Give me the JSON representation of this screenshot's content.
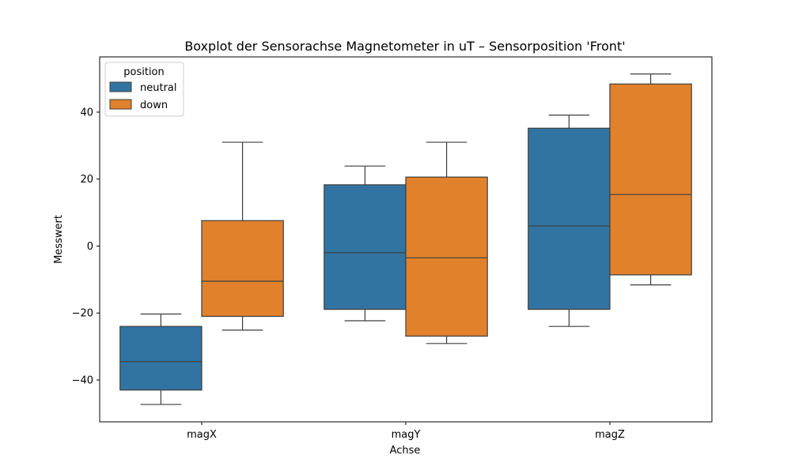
{
  "chart_data": {
    "type": "boxplot",
    "title": "Boxplot der Sensorachse Magnetometer in uT – Sensorposition 'Front'",
    "xlabel": "Achse",
    "ylabel": "Messwert",
    "ylim": [
      -52.5,
      56.5
    ],
    "yticks": [
      -40,
      -20,
      0,
      20,
      40
    ],
    "ytick_labels": [
      "−40",
      "−20",
      "0",
      "20",
      "40"
    ],
    "categories": [
      "magX",
      "magY",
      "magZ"
    ],
    "legend": {
      "title": "position",
      "placement": "top-left"
    },
    "series": [
      {
        "name": "neutral",
        "color": "#3274a1",
        "boxes": [
          {
            "whislo": -47.3,
            "q1": -43.0,
            "med": -34.5,
            "q3": -24.0,
            "whishi": -20.3
          },
          {
            "whislo": -22.3,
            "q1": -18.9,
            "med": -2.0,
            "q3": 18.3,
            "whishi": 23.9
          },
          {
            "whislo": -24.0,
            "q1": -18.9,
            "med": 6.0,
            "q3": 35.2,
            "whishi": 39.1
          }
        ]
      },
      {
        "name": "down",
        "color": "#e1812c",
        "boxes": [
          {
            "whislo": -25.1,
            "q1": -21.0,
            "med": -10.5,
            "q3": 7.6,
            "whishi": 31.0
          },
          {
            "whislo": -29.1,
            "q1": -26.9,
            "med": -3.5,
            "q3": 20.6,
            "whishi": 31.0
          },
          {
            "whislo": -11.6,
            "q1": -8.6,
            "med": 15.4,
            "q3": 48.4,
            "whishi": 51.4
          }
        ]
      }
    ]
  }
}
